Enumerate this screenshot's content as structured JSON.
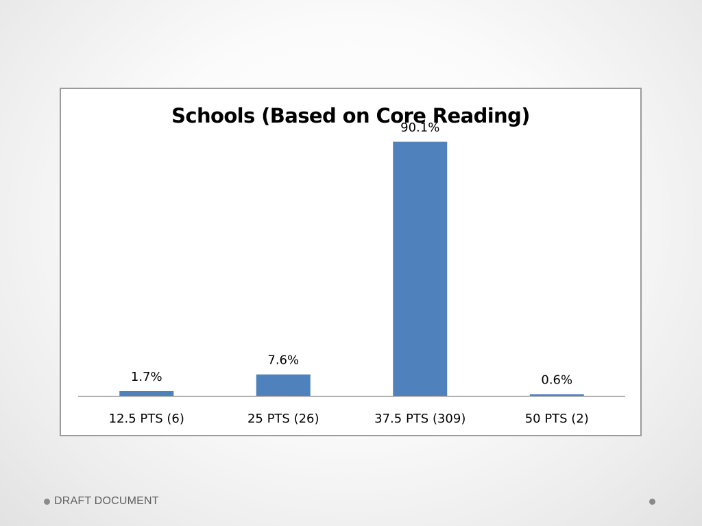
{
  "footer": {
    "text": "DRAFT DOCUMENT"
  },
  "chart_data": {
    "type": "bar",
    "title": "Schools (Based on Core Reading)",
    "categories": [
      "12.5 PTS (6)",
      "25 PTS (26)",
      "37.5 PTS (309)",
      "50 PTS (2)"
    ],
    "values": [
      1.7,
      7.6,
      90.1,
      0.6
    ],
    "data_labels": [
      "1.7%",
      "7.6%",
      "90.1%",
      "0.6%"
    ],
    "xlabel": "",
    "ylabel": "",
    "ylim": [
      0,
      100
    ],
    "grid": false,
    "legend": "none",
    "bar_color": "#4f81bd",
    "axis_color": "#868686"
  }
}
